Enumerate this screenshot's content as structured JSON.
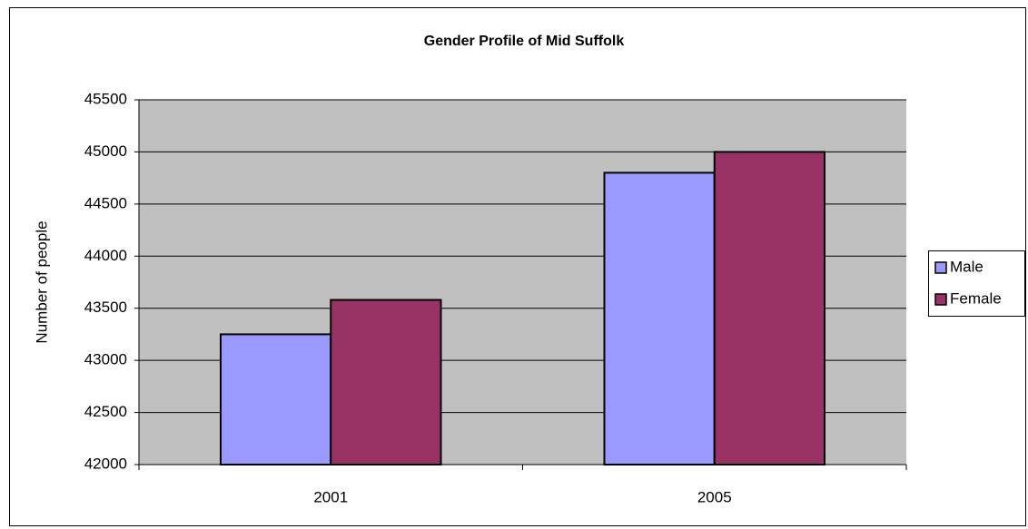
{
  "chart_data": {
    "type": "bar",
    "title": "Gender Profile of Mid Suffolk",
    "y_label": "Number of people",
    "categories": [
      "2001",
      "2005"
    ],
    "series": [
      {
        "name": "Male",
        "color": "#9999ff",
        "values": [
          43250,
          44800
        ]
      },
      {
        "name": "Female",
        "color": "#993366",
        "values": [
          43580,
          45000
        ]
      }
    ],
    "ylim": [
      42000,
      45500
    ],
    "yticks": [
      42000,
      42500,
      43000,
      43500,
      44000,
      44500,
      45000,
      45500
    ],
    "grid": true,
    "legend": "right"
  }
}
